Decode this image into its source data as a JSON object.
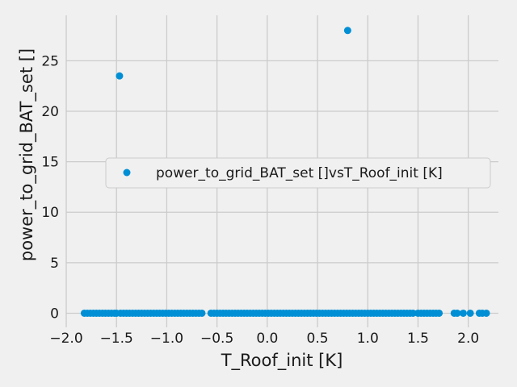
{
  "colors": {
    "background": "#f0f0f0",
    "series": "#008fd5",
    "grid": "#cbcbcb"
  },
  "chart_data": {
    "type": "scatter",
    "xlabel": "T_Roof_init [K]",
    "ylabel": "power_to_grid_BAT_set []",
    "xlim": [
      -2.0,
      2.3
    ],
    "ylim": [
      -1.4,
      29.5
    ],
    "xticks": [
      -2.0,
      -1.5,
      -1.0,
      -0.5,
      0.0,
      0.5,
      1.0,
      1.5,
      2.0
    ],
    "xtick_labels": [
      "−2.0",
      "−1.5",
      "−1.0",
      "−0.5",
      "0.0",
      "0.5",
      "1.0",
      "1.5",
      "2.0"
    ],
    "yticks": [
      0,
      5,
      10,
      15,
      20,
      25
    ],
    "ytick_labels": [
      "0",
      "5",
      "10",
      "15",
      "20",
      "25"
    ],
    "grid": true,
    "legend": {
      "placement": "right",
      "entries": [
        "power_to_grid_BAT_set []vsT_Roof_init [K]"
      ]
    },
    "series": [
      {
        "name": "power_to_grid_BAT_set []vsT_Roof_init [K]",
        "color": "#008fd5",
        "points": [
          {
            "x": -1.47,
            "y": 23.5
          },
          {
            "x": 0.8,
            "y": 28.0
          }
        ],
        "zero_points_x": [
          -1.82,
          -1.79,
          -1.76,
          -1.73,
          -1.7,
          -1.67,
          -1.64,
          -1.61,
          -1.58,
          -1.55,
          -1.52,
          -1.5,
          -1.46,
          -1.43,
          -1.4,
          -1.37,
          -1.34,
          -1.31,
          -1.28,
          -1.25,
          -1.22,
          -1.19,
          -1.16,
          -1.13,
          -1.1,
          -1.07,
          -1.04,
          -1.01,
          -0.98,
          -0.95,
          -0.92,
          -0.89,
          -0.86,
          -0.83,
          -0.8,
          -0.77,
          -0.74,
          -0.71,
          -0.68,
          -0.65,
          -0.56,
          -0.53,
          -0.5,
          -0.47,
          -0.44,
          -0.41,
          -0.38,
          -0.35,
          -0.32,
          -0.29,
          -0.26,
          -0.23,
          -0.2,
          -0.17,
          -0.14,
          -0.11,
          -0.08,
          -0.05,
          -0.02,
          0.01,
          0.04,
          0.07,
          0.1,
          0.13,
          0.16,
          0.19,
          0.22,
          0.25,
          0.28,
          0.31,
          0.34,
          0.37,
          0.4,
          0.43,
          0.46,
          0.49,
          0.52,
          0.55,
          0.58,
          0.61,
          0.64,
          0.67,
          0.7,
          0.73,
          0.76,
          0.79,
          0.82,
          0.85,
          0.88,
          0.91,
          0.94,
          0.97,
          1.0,
          1.03,
          1.06,
          1.09,
          1.12,
          1.15,
          1.18,
          1.21,
          1.24,
          1.27,
          1.3,
          1.33,
          1.36,
          1.39,
          1.42,
          1.45,
          1.5,
          1.53,
          1.56,
          1.59,
          1.62,
          1.65,
          1.68,
          1.71,
          1.86,
          1.89,
          1.95,
          2.02,
          2.11,
          2.14,
          2.18
        ]
      }
    ]
  }
}
